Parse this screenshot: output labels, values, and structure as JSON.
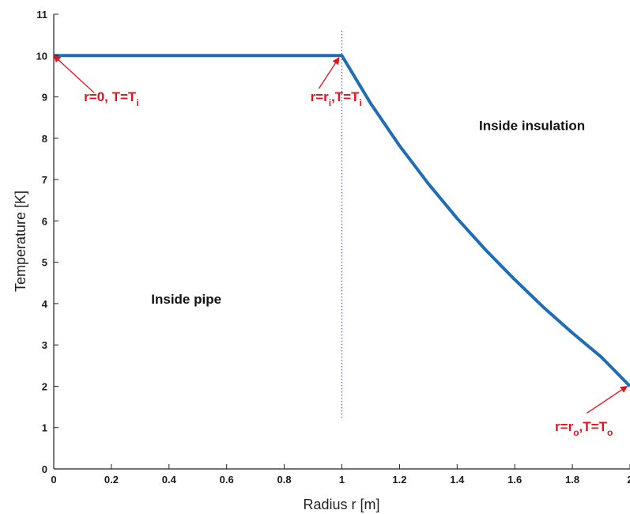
{
  "chart_data": {
    "type": "line",
    "xlabel": "Radius r [m]",
    "ylabel": "Temperature [K]",
    "xlim": [
      0,
      2
    ],
    "ylim": [
      0,
      11
    ],
    "x_ticks": [
      0,
      0.2,
      0.4,
      0.6,
      0.8,
      1,
      1.2,
      1.4,
      1.6,
      1.8,
      2
    ],
    "x_tick_labels": [
      "0",
      "0.2",
      "0.4",
      "0.6",
      "0.8",
      "1",
      "1.2",
      "1.4",
      "1.6",
      "1.8",
      "2"
    ],
    "y_ticks": [
      0,
      1,
      2,
      3,
      4,
      5,
      6,
      7,
      8,
      9,
      10,
      11
    ],
    "y_tick_labels": [
      "0",
      "1",
      "2",
      "3",
      "4",
      "5",
      "6",
      "7",
      "8",
      "9",
      "10",
      "11"
    ],
    "grid": false,
    "series": [
      {
        "color": "#1f6db5",
        "x": [
          0,
          0.5,
          1.0,
          1.1,
          1.2,
          1.3,
          1.4,
          1.5,
          1.6,
          1.7,
          1.8,
          1.9,
          2.0
        ],
        "y": [
          10,
          10,
          10,
          8.84,
          7.82,
          6.9,
          6.06,
          5.29,
          4.58,
          3.91,
          3.29,
          2.71,
          2.0
        ]
      }
    ],
    "reference_line": {
      "type": "vertical",
      "x": 1.0,
      "y_range": [
        1.2,
        10.6
      ],
      "style": "dotted",
      "color": "#3b4fd9"
    },
    "region_labels": [
      {
        "text": "Inside pipe",
        "x": 0.46,
        "y": 4.0
      },
      {
        "text": "Inside insulation",
        "x": 1.66,
        "y": 8.2
      }
    ],
    "annotations": [
      {
        "parts": [
          "r=0, T=T",
          "i"
        ],
        "color": "#e8101a",
        "text_x": 0.2,
        "text_y": 8.9,
        "arrow_from": [
          0.14,
          9.1
        ],
        "arrow_to": [
          0.0,
          10.0
        ]
      },
      {
        "parts": [
          "r=r",
          "i",
          ",T=T",
          "i"
        ],
        "color": "#e8101a",
        "text_x": 0.98,
        "text_y": 8.9,
        "arrow_from": [
          0.92,
          9.2
        ],
        "arrow_to": [
          0.99,
          9.95
        ]
      },
      {
        "parts": [
          "r=r",
          "o",
          ",T=T",
          "o"
        ],
        "color": "#e8101a",
        "text_x": 1.84,
        "text_y": 0.92,
        "arrow_from": [
          1.85,
          1.35
        ],
        "arrow_to": [
          1.99,
          2.0
        ]
      }
    ]
  }
}
